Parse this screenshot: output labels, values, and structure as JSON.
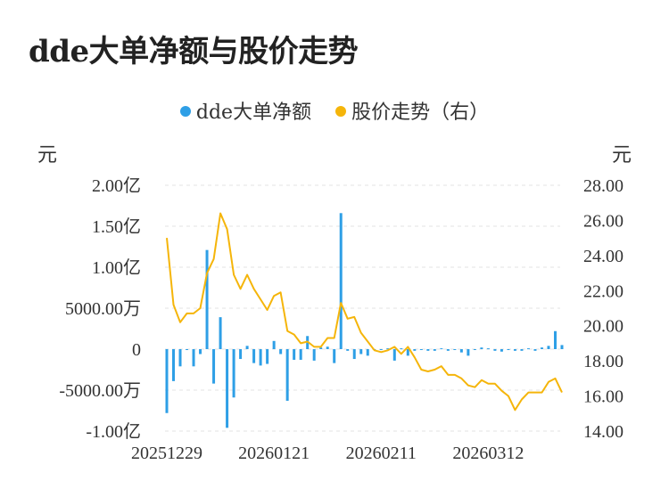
{
  "title": "dde大单净额与股价走势",
  "legend": [
    {
      "label": "dde大单净额",
      "color": "#2e9fe6"
    },
    {
      "label": "股价走势（右）",
      "color": "#f5b50a"
    }
  ],
  "units": {
    "left": "元",
    "right": "元"
  },
  "chart_data": {
    "type": "bar+line",
    "y_left": {
      "min": -10000,
      "max": 20000,
      "unit": "万",
      "ticks": [
        {
          "value": 20000,
          "label": "2.00亿"
        },
        {
          "value": 15000,
          "label": "1.50亿"
        },
        {
          "value": 10000,
          "label": "1.00亿"
        },
        {
          "value": 5000,
          "label": "5000.00万"
        },
        {
          "value": 0,
          "label": "0"
        },
        {
          "value": -5000,
          "label": "-5000.00万"
        },
        {
          "value": -10000,
          "label": "-1.00亿"
        }
      ]
    },
    "y_right": {
      "min": 14,
      "max": 28,
      "ticks": [
        "28.00",
        "26.00",
        "24.00",
        "22.00",
        "20.00",
        "18.00",
        "16.00",
        "14.00"
      ]
    },
    "x_ticks": [
      {
        "index": 0,
        "label": "20251229"
      },
      {
        "index": 16,
        "label": "20260121"
      },
      {
        "index": 32,
        "label": "20260211"
      },
      {
        "index": 48,
        "label": "20260312"
      }
    ],
    "bar_color": "#2e9fe6",
    "line_color": "#f5b50a",
    "bars": [
      -7800,
      -3900,
      -2100,
      -100,
      -2100,
      -600,
      12100,
      -4200,
      3900,
      -9600,
      -5900,
      -1200,
      400,
      -1700,
      -2000,
      -1800,
      1000,
      -600,
      -6300,
      -1300,
      -1300,
      1600,
      -1400,
      200,
      300,
      -1700,
      16600,
      -200,
      -1200,
      -600,
      -800,
      -100,
      0,
      100,
      -1400,
      100,
      -800,
      -200,
      -100,
      -200,
      -200,
      100,
      -200,
      0,
      -400,
      -800,
      0,
      200,
      100,
      -200,
      -300,
      -100,
      -200,
      -200,
      100,
      -200,
      200,
      400,
      2200,
      500
    ],
    "line": [
      25.0,
      21.2,
      20.2,
      20.7,
      20.7,
      21.0,
      23.0,
      23.8,
      26.4,
      25.5,
      22.9,
      22.1,
      22.9,
      22.1,
      21.5,
      20.9,
      21.7,
      21.9,
      19.7,
      19.5,
      19.0,
      19.1,
      18.8,
      18.8,
      19.3,
      19.3,
      21.3,
      20.4,
      20.5,
      19.6,
      19.1,
      18.6,
      18.5,
      18.6,
      18.8,
      18.4,
      18.8,
      18.2,
      17.5,
      17.4,
      17.5,
      17.7,
      17.2,
      17.2,
      17.0,
      16.6,
      16.5,
      16.9,
      16.7,
      16.7,
      16.3,
      16.0,
      15.2,
      15.8,
      16.2,
      16.2,
      16.2,
      16.8,
      17.0,
      16.2
    ]
  }
}
